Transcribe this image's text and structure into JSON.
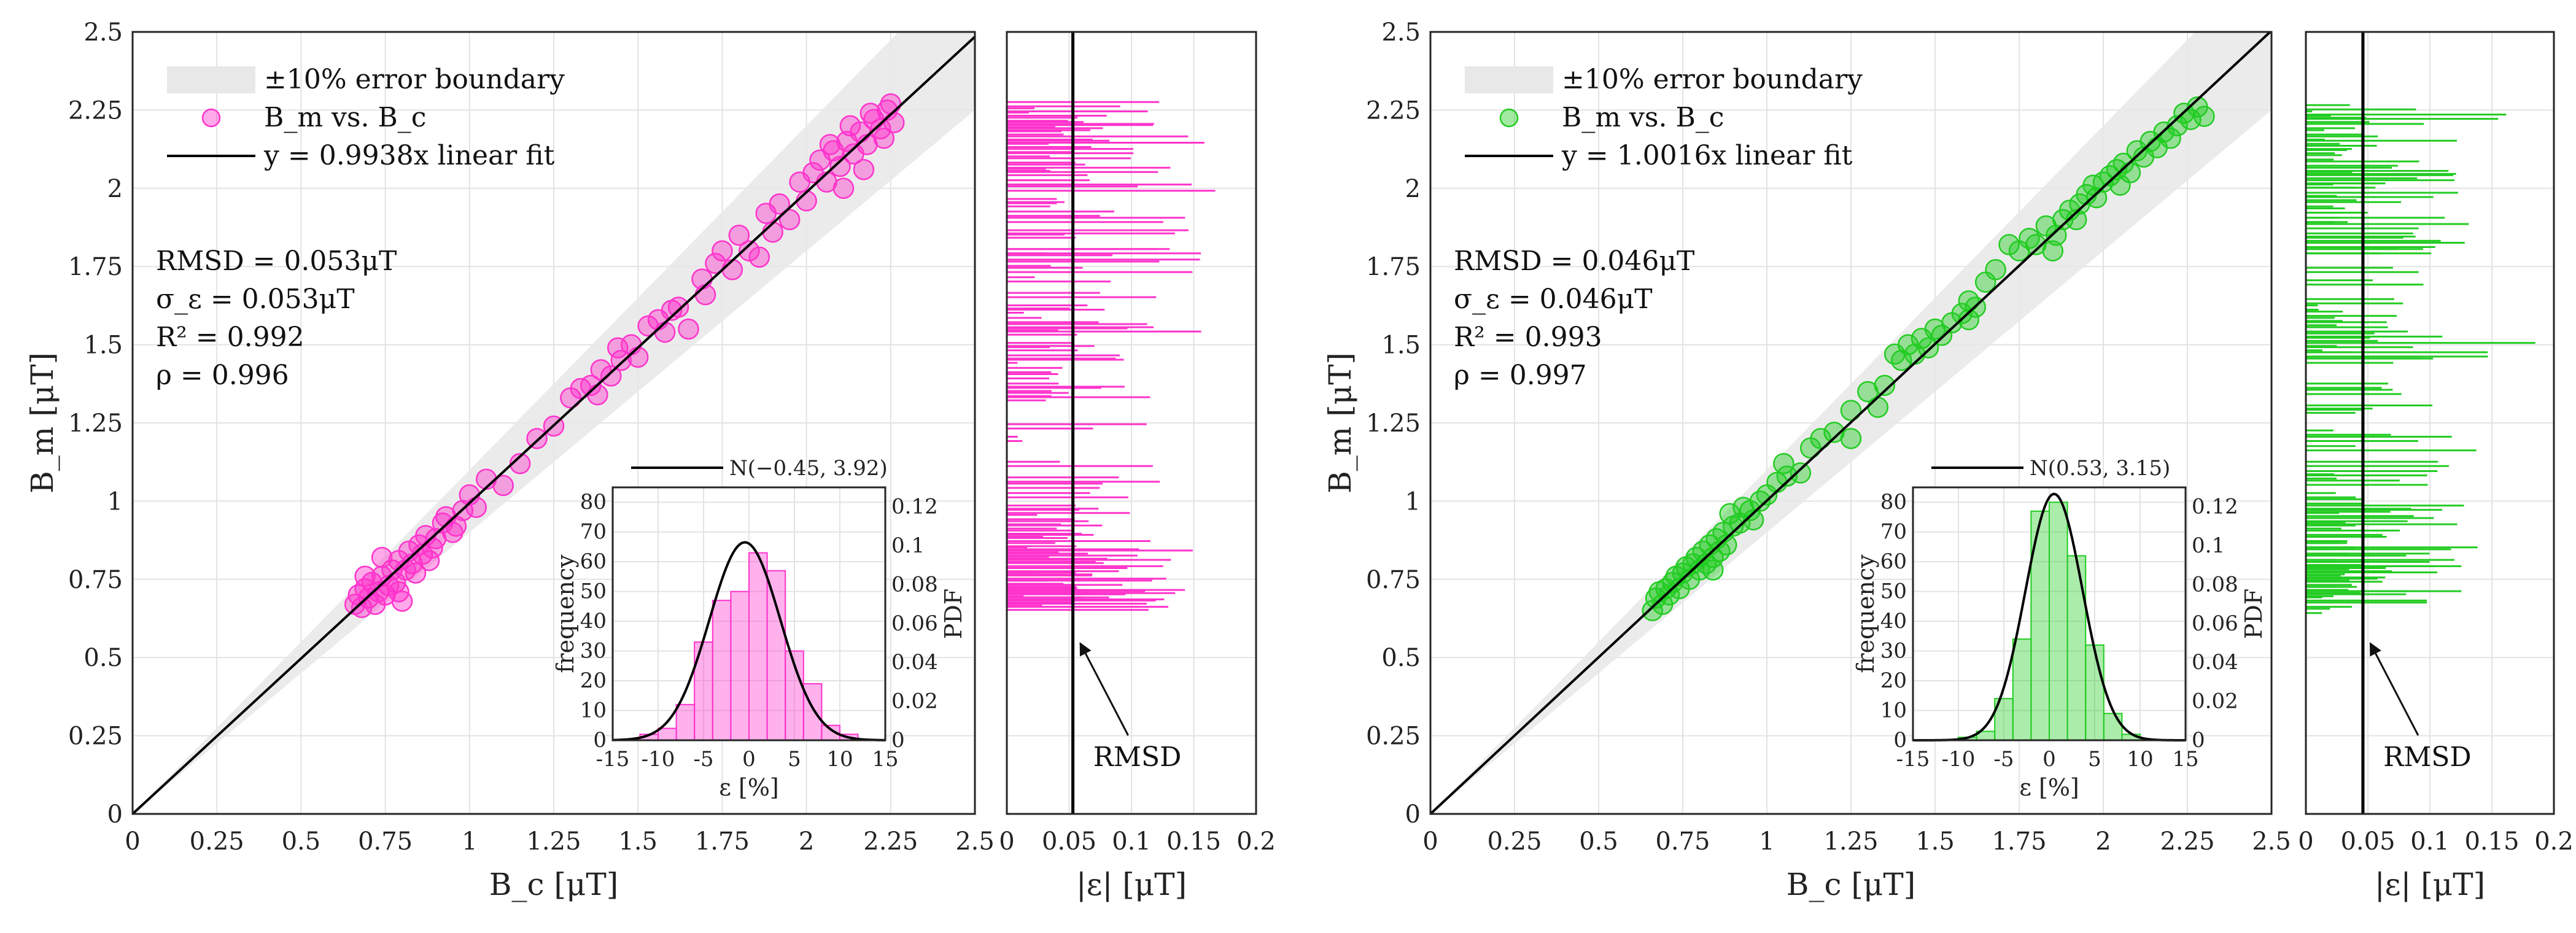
{
  "chart_data": [
    {
      "type": "scatter",
      "color": "#ff33cc",
      "xlabel": "B_c [μT]",
      "ylabel": "B_m [μT]",
      "xlim": [
        0,
        2.5
      ],
      "ylim": [
        0,
        2.5
      ],
      "xticks": [
        "0",
        "0.25",
        "0.5",
        "0.75",
        "1",
        "1.25",
        "1.5",
        "1.75",
        "2",
        "2.25",
        "2.5"
      ],
      "yticks": [
        "0",
        "0.25",
        "0.5",
        "0.75",
        "1",
        "1.25",
        "1.5",
        "1.75",
        "2",
        "2.25",
        "2.5"
      ],
      "legend": [
        "±10% error boundary",
        "B_m vs. B_c",
        "y = 0.9938x linear fit"
      ],
      "fit_slope": 0.9938,
      "stats": [
        "RMSD = 0.053μT",
        "σ_ε = 0.053μT",
        "R² = 0.992",
        "ρ = 0.996"
      ],
      "points": [
        [
          0.66,
          0.67
        ],
        [
          0.67,
          0.7
        ],
        [
          0.68,
          0.66
        ],
        [
          0.69,
          0.72
        ],
        [
          0.7,
          0.69
        ],
        [
          0.71,
          0.74
        ],
        [
          0.72,
          0.67
        ],
        [
          0.73,
          0.71
        ],
        [
          0.74,
          0.76
        ],
        [
          0.75,
          0.7
        ],
        [
          0.76,
          0.73
        ],
        [
          0.77,
          0.78
        ],
        [
          0.78,
          0.74
        ],
        [
          0.79,
          0.81
        ],
        [
          0.8,
          0.68
        ],
        [
          0.81,
          0.78
        ],
        [
          0.82,
          0.84
        ],
        [
          0.83,
          0.8
        ],
        [
          0.84,
          0.77
        ],
        [
          0.85,
          0.86
        ],
        [
          0.86,
          0.83
        ],
        [
          0.87,
          0.89
        ],
        [
          0.88,
          0.81
        ],
        [
          0.9,
          0.88
        ],
        [
          0.92,
          0.93
        ],
        [
          0.95,
          0.9
        ],
        [
          0.98,
          0.97
        ],
        [
          1.0,
          1.02
        ],
        [
          1.02,
          0.98
        ],
        [
          1.05,
          1.07
        ],
        [
          1.1,
          1.05
        ],
        [
          1.15,
          1.12
        ],
        [
          1.2,
          1.2
        ],
        [
          1.25,
          1.24
        ],
        [
          1.3,
          1.33
        ],
        [
          1.33,
          1.36
        ],
        [
          1.36,
          1.37
        ],
        [
          1.39,
          1.42
        ],
        [
          1.42,
          1.4
        ],
        [
          1.45,
          1.45
        ],
        [
          1.48,
          1.5
        ],
        [
          1.5,
          1.46
        ],
        [
          1.53,
          1.56
        ],
        [
          1.56,
          1.58
        ],
        [
          1.58,
          1.54
        ],
        [
          1.6,
          1.61
        ],
        [
          1.65,
          1.55
        ],
        [
          1.7,
          1.66
        ],
        [
          1.75,
          1.8
        ],
        [
          1.78,
          1.74
        ],
        [
          1.8,
          1.85
        ],
        [
          1.83,
          1.8
        ],
        [
          1.86,
          1.78
        ],
        [
          1.88,
          1.92
        ],
        [
          1.9,
          1.86
        ],
        [
          1.92,
          1.95
        ],
        [
          1.95,
          1.9
        ],
        [
          1.98,
          2.02
        ],
        [
          2.0,
          1.96
        ],
        [
          2.02,
          2.05
        ],
        [
          2.04,
          2.09
        ],
        [
          2.06,
          2.02
        ],
        [
          2.08,
          2.12
        ],
        [
          2.1,
          2.07
        ],
        [
          2.12,
          2.15
        ],
        [
          2.14,
          2.11
        ],
        [
          2.16,
          2.18
        ],
        [
          2.18,
          2.14
        ],
        [
          2.2,
          2.22
        ],
        [
          2.22,
          2.19
        ],
        [
          2.24,
          2.25
        ],
        [
          2.26,
          2.21
        ],
        [
          2.25,
          2.27
        ],
        [
          2.19,
          2.24
        ],
        [
          2.13,
          2.2
        ],
        [
          2.07,
          2.14
        ],
        [
          2.23,
          2.16
        ],
        [
          2.17,
          2.06
        ],
        [
          2.11,
          2.0
        ],
        [
          1.73,
          1.76
        ],
        [
          1.69,
          1.71
        ],
        [
          1.62,
          1.62
        ],
        [
          1.44,
          1.49
        ],
        [
          1.38,
          1.34
        ],
        [
          0.93,
          0.95
        ],
        [
          0.96,
          0.92
        ],
        [
          0.89,
          0.85
        ],
        [
          0.74,
          0.82
        ],
        [
          0.69,
          0.76
        ],
        [
          0.79,
          0.71
        ]
      ],
      "inset": {
        "ylabel": "frequency",
        "ylabel_right": "PDF",
        "xlabel": "ε [%]",
        "xlim": [
          -15,
          15
        ],
        "ylim_left": [
          0,
          85
        ],
        "ylim_right": [
          0,
          0.13
        ],
        "xticks": [
          "-15",
          "-10",
          "-5",
          "0",
          "5",
          "10",
          "15"
        ],
        "yticks_left": [
          "0",
          "10",
          "20",
          "30",
          "40",
          "50",
          "60",
          "70",
          "80"
        ],
        "yticks_right": [
          "0",
          "0.02",
          "0.04",
          "0.06",
          "0.08",
          "0.1",
          "0.12"
        ],
        "legend": "N(−0.45, 3.92)",
        "mu": -0.45,
        "sigma": 3.92,
        "bin_edges": [
          -12,
          -10,
          -8,
          -6,
          -4,
          -2,
          0,
          2,
          4,
          6,
          8,
          10,
          12
        ],
        "bin_counts": [
          2,
          4,
          12,
          33,
          47,
          50,
          63,
          57,
          30,
          19,
          5,
          2
        ]
      },
      "side_panel": {
        "xlabel": "|ε| [μT]",
        "xlim": [
          0,
          0.2
        ],
        "xticks": [
          "0",
          "0.05",
          "0.1",
          "0.15",
          "0.2"
        ],
        "rmsd": 0.053,
        "annotation": "RMSD",
        "seed": 7
      }
    },
    {
      "type": "scatter",
      "color": "#22cc22",
      "xlabel": "B_c [μT]",
      "ylabel": "B_m [μT]",
      "xlim": [
        0,
        2.5
      ],
      "ylim": [
        0,
        2.5
      ],
      "xticks": [
        "0",
        "0.25",
        "0.5",
        "0.75",
        "1",
        "1.25",
        "1.5",
        "1.75",
        "2",
        "2.25",
        "2.5"
      ],
      "yticks": [
        "0",
        "0.25",
        "0.5",
        "0.75",
        "1",
        "1.25",
        "1.5",
        "1.75",
        "2",
        "2.25",
        "2.5"
      ],
      "legend": [
        "±10% error boundary",
        "B_m vs. B_c",
        "y = 1.0016x linear fit"
      ],
      "fit_slope": 1.0016,
      "stats": [
        "RMSD = 0.046μT",
        "σ_ε = 0.046μT",
        "R² = 0.993",
        "ρ = 0.997"
      ],
      "points": [
        [
          0.66,
          0.65
        ],
        [
          0.67,
          0.69
        ],
        [
          0.68,
          0.71
        ],
        [
          0.69,
          0.67
        ],
        [
          0.7,
          0.72
        ],
        [
          0.71,
          0.7
        ],
        [
          0.72,
          0.74
        ],
        [
          0.73,
          0.76
        ],
        [
          0.74,
          0.72
        ],
        [
          0.75,
          0.77
        ],
        [
          0.76,
          0.79
        ],
        [
          0.77,
          0.75
        ],
        [
          0.78,
          0.8
        ],
        [
          0.79,
          0.82
        ],
        [
          0.8,
          0.78
        ],
        [
          0.81,
          0.84
        ],
        [
          0.82,
          0.8
        ],
        [
          0.83,
          0.86
        ],
        [
          0.84,
          0.82
        ],
        [
          0.85,
          0.88
        ],
        [
          0.86,
          0.84
        ],
        [
          0.87,
          0.9
        ],
        [
          0.88,
          0.86
        ],
        [
          0.89,
          0.96
        ],
        [
          0.9,
          0.92
        ],
        [
          0.92,
          0.93
        ],
        [
          0.95,
          0.97
        ],
        [
          0.98,
          1.0
        ],
        [
          1.0,
          1.02
        ],
        [
          1.03,
          1.06
        ],
        [
          1.06,
          1.08
        ],
        [
          1.1,
          1.09
        ],
        [
          1.13,
          1.17
        ],
        [
          1.16,
          1.2
        ],
        [
          1.2,
          1.22
        ],
        [
          1.25,
          1.29
        ],
        [
          1.3,
          1.35
        ],
        [
          1.35,
          1.37
        ],
        [
          1.4,
          1.45
        ],
        [
          1.42,
          1.5
        ],
        [
          1.44,
          1.47
        ],
        [
          1.46,
          1.52
        ],
        [
          1.48,
          1.49
        ],
        [
          1.5,
          1.55
        ],
        [
          1.52,
          1.53
        ],
        [
          1.55,
          1.57
        ],
        [
          1.58,
          1.6
        ],
        [
          1.6,
          1.64
        ],
        [
          1.62,
          1.62
        ],
        [
          1.65,
          1.7
        ],
        [
          1.68,
          1.74
        ],
        [
          1.72,
          1.82
        ],
        [
          1.75,
          1.8
        ],
        [
          1.78,
          1.84
        ],
        [
          1.8,
          1.82
        ],
        [
          1.83,
          1.88
        ],
        [
          1.86,
          1.85
        ],
        [
          1.88,
          1.9
        ],
        [
          1.9,
          1.93
        ],
        [
          1.92,
          1.9
        ],
        [
          1.95,
          1.98
        ],
        [
          1.98,
          1.97
        ],
        [
          2.0,
          2.02
        ],
        [
          2.02,
          2.04
        ],
        [
          2.04,
          2.06
        ],
        [
          2.06,
          2.08
        ],
        [
          2.08,
          2.05
        ],
        [
          2.1,
          2.12
        ],
        [
          2.12,
          2.1
        ],
        [
          2.14,
          2.15
        ],
        [
          2.16,
          2.13
        ],
        [
          2.18,
          2.18
        ],
        [
          2.2,
          2.16
        ],
        [
          2.22,
          2.2
        ],
        [
          2.24,
          2.24
        ],
        [
          2.26,
          2.22
        ],
        [
          2.28,
          2.26
        ],
        [
          2.3,
          2.23
        ],
        [
          2.05,
          2.01
        ],
        [
          1.97,
          2.01
        ],
        [
          1.93,
          1.95
        ],
        [
          1.85,
          1.8
        ],
        [
          1.6,
          1.58
        ],
        [
          1.38,
          1.47
        ],
        [
          1.33,
          1.3
        ],
        [
          1.25,
          1.2
        ],
        [
          1.05,
          1.12
        ],
        [
          0.96,
          0.94
        ],
        [
          0.93,
          0.98
        ],
        [
          0.84,
          0.78
        ]
      ],
      "inset": {
        "ylabel": "frequency",
        "ylabel_right": "PDF",
        "xlabel": "ε [%]",
        "xlim": [
          -15,
          15
        ],
        "ylim_left": [
          0,
          85
        ],
        "ylim_right": [
          0,
          0.13
        ],
        "xticks": [
          "-15",
          "-10",
          "-5",
          "0",
          "5",
          "10",
          "15"
        ],
        "yticks_left": [
          "0",
          "10",
          "20",
          "30",
          "40",
          "50",
          "60",
          "70",
          "80"
        ],
        "yticks_right": [
          "0",
          "0.02",
          "0.04",
          "0.06",
          "0.08",
          "0.1",
          "0.12"
        ],
        "legend": "N(0.53, 3.15)",
        "mu": 0.53,
        "sigma": 3.15,
        "bin_edges": [
          -12,
          -10,
          -8,
          -6,
          -4,
          -2,
          0,
          2,
          4,
          6,
          8,
          10,
          12
        ],
        "bin_counts": [
          0,
          1,
          3,
          14,
          34,
          77,
          80,
          62,
          32,
          9,
          2,
          0
        ]
      },
      "side_panel": {
        "xlabel": "|ε| [μT]",
        "xlim": [
          0,
          0.2
        ],
        "xticks": [
          "0",
          "0.05",
          "0.1",
          "0.15",
          "0.2"
        ],
        "rmsd": 0.046,
        "annotation": "RMSD",
        "seed": 19
      }
    }
  ]
}
